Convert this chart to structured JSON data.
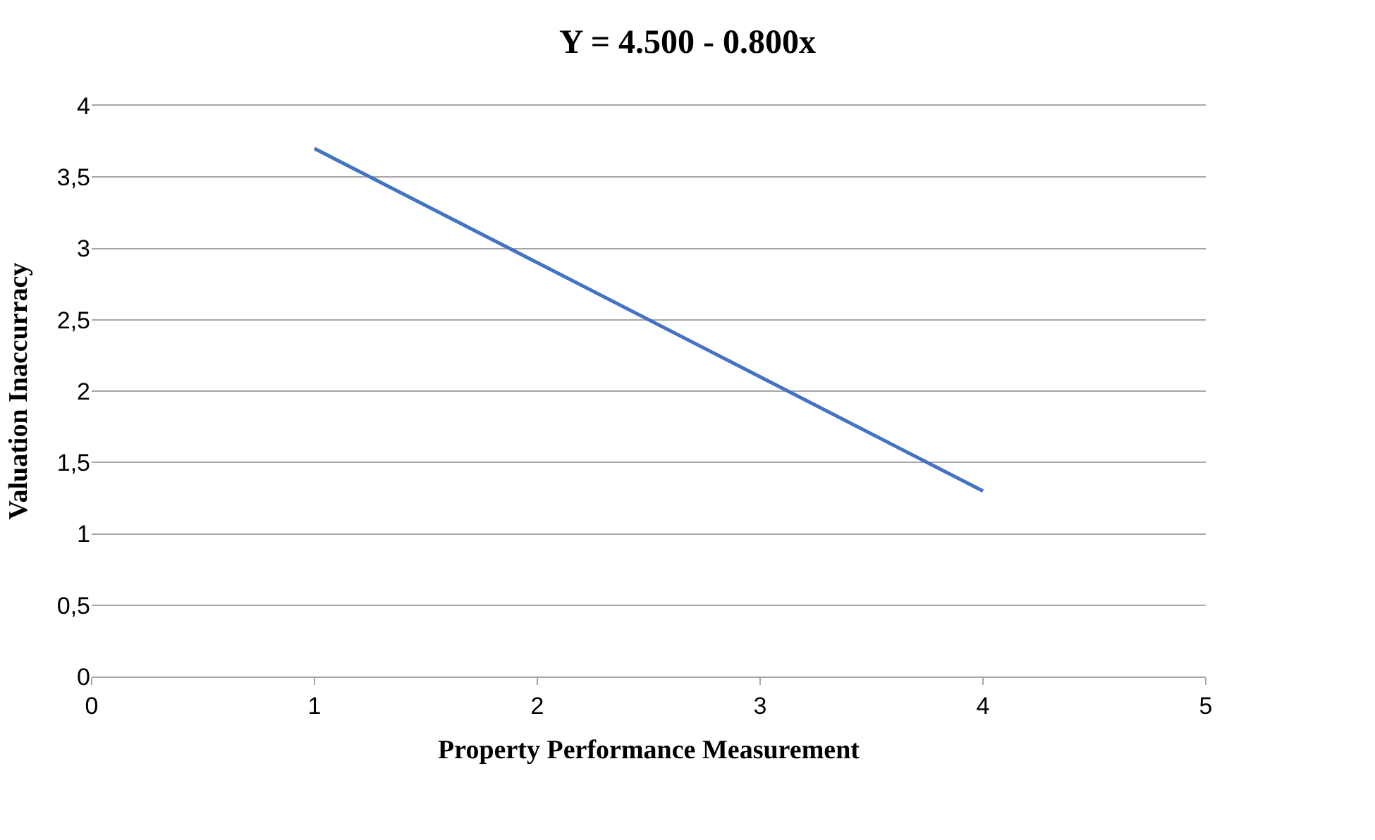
{
  "chart_data": {
    "type": "line",
    "title": "Y = 4.500 - 0.800x",
    "xlabel": "Property Performance Measurement",
    "ylabel": "Valuation Inaccurracy",
    "x": [
      1,
      2,
      3,
      4
    ],
    "series": [
      {
        "color": "#4472c4",
        "values": [
          3.7,
          2.9,
          2.1,
          1.3
        ]
      }
    ],
    "xlim": [
      0,
      5
    ],
    "xticks": [
      0,
      1,
      2,
      3,
      4,
      5
    ],
    "ylim": [
      0,
      4
    ],
    "yticks": [
      0,
      {
        "value": 0.5,
        "label": "0,5"
      },
      1,
      {
        "value": 1.5,
        "label": "1,5"
      },
      2,
      {
        "value": 2.5,
        "label": "2,5"
      },
      3,
      {
        "value": 3.5,
        "label": "3,5"
      },
      4
    ],
    "grid": "y",
    "marker": "none",
    "line_style": "solid"
  }
}
